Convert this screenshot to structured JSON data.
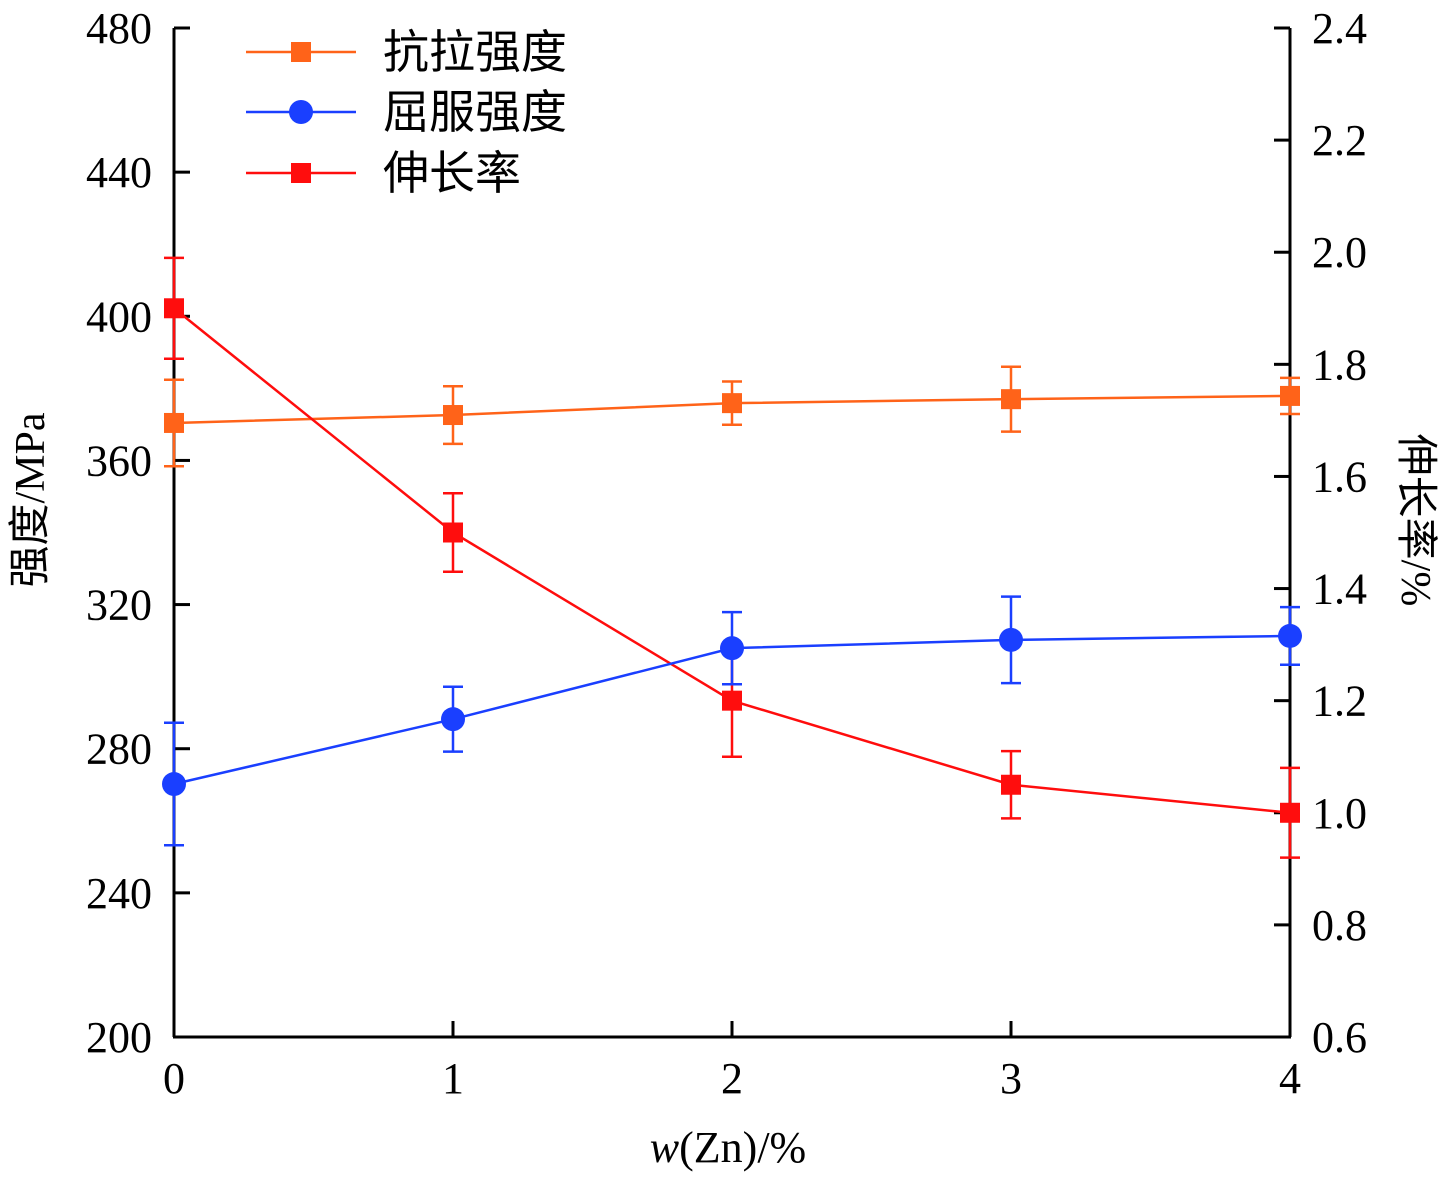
{
  "chart_data": {
    "type": "line",
    "title": "",
    "xlabel_italic": "w",
    "xlabel_rest": "(Zn)/%",
    "ylabel_left": "强度/MPa",
    "ylabel_right": "伸长率/%",
    "x": [
      0,
      1,
      2,
      3,
      4
    ],
    "xlim": [
      0,
      4
    ],
    "ylim_left": [
      200,
      480
    ],
    "ylim_right": [
      0.6,
      2.4
    ],
    "xticks": [
      "0",
      "1",
      "2",
      "3",
      "4"
    ],
    "yticks_left": [
      "200",
      "240",
      "280",
      "320",
      "360",
      "400",
      "440",
      "480"
    ],
    "yticks_right": [
      "0.6",
      "0.8",
      "1.0",
      "1.2",
      "1.4",
      "1.6",
      "1.8",
      "2.0",
      "2.2",
      "2.4"
    ],
    "grid": false,
    "legend_position": "top-left",
    "series": [
      {
        "name": "抗拉强度",
        "axis": "left",
        "marker": "square",
        "color": "#ff6319",
        "values": [
          370.4,
          372.6,
          375.9,
          377.0,
          377.9
        ],
        "errors": [
          12,
          8,
          6,
          9,
          5
        ]
      },
      {
        "name": "屈服强度",
        "axis": "left",
        "marker": "circle",
        "color": "#1a3fff",
        "values": [
          270.2,
          288.2,
          307.9,
          310.2,
          311.3
        ],
        "errors": [
          17,
          9,
          10,
          12,
          8
        ]
      },
      {
        "name": "伸长率",
        "axis": "right",
        "marker": "square",
        "color": "#ff0d0d",
        "values": [
          1.9,
          1.5,
          1.2,
          1.05,
          1.0
        ],
        "errors": [
          0.09,
          0.07,
          0.1,
          0.06,
          0.08
        ]
      }
    ]
  }
}
